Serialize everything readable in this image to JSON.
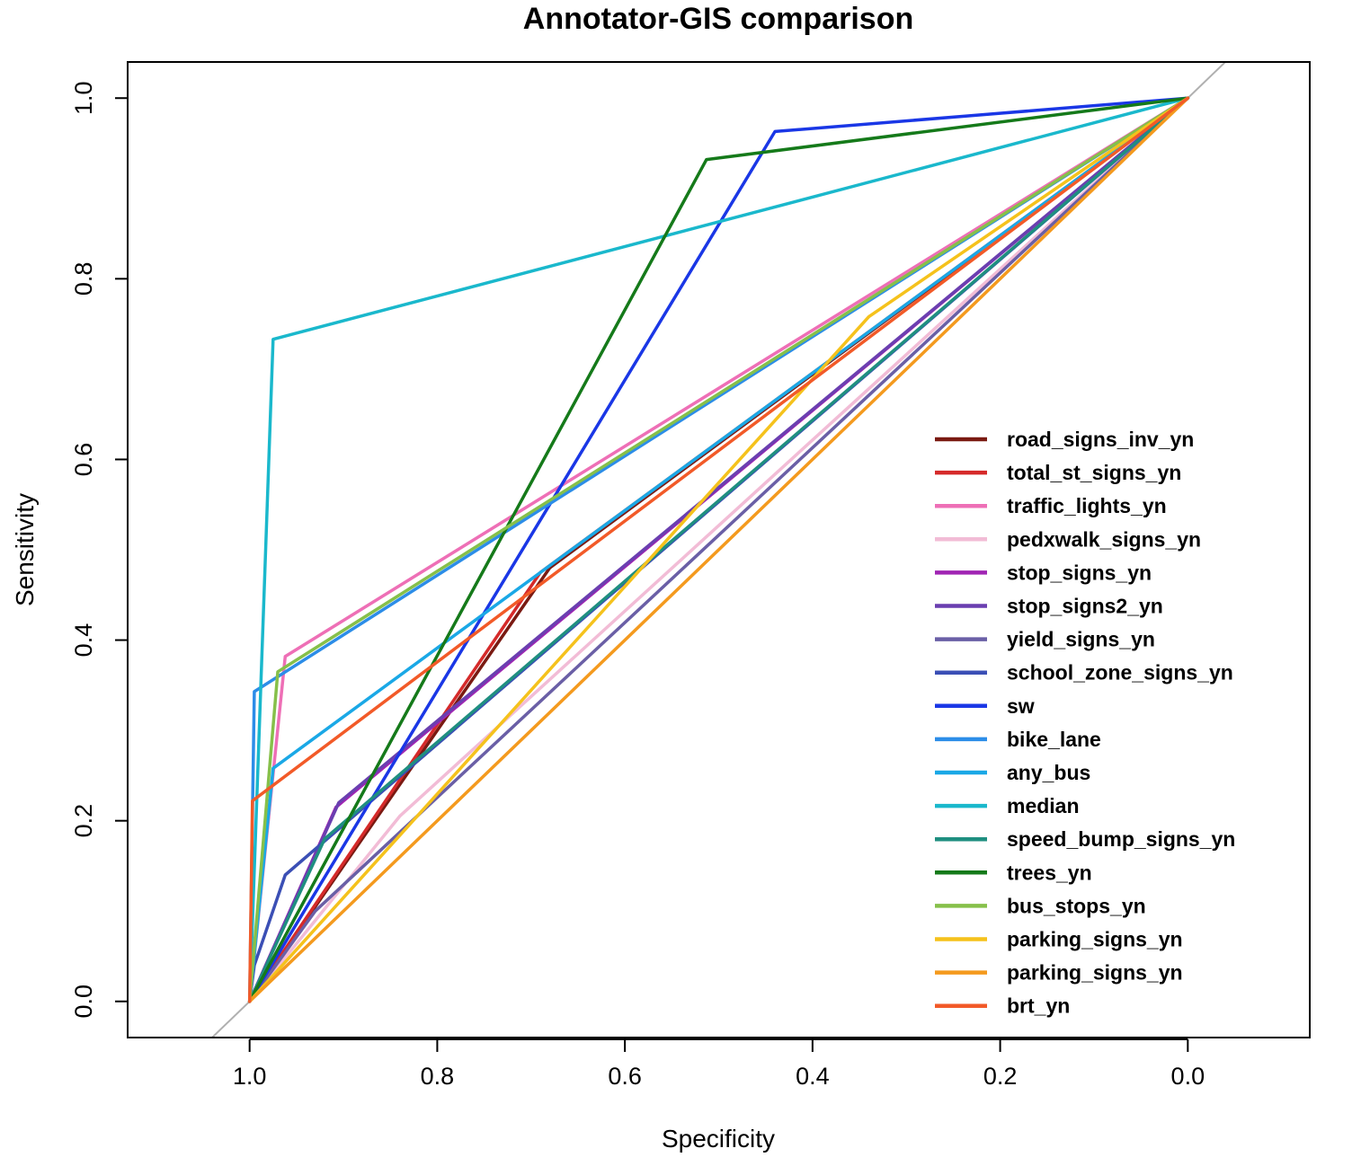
{
  "chart_data": {
    "type": "line",
    "title": "Annotator-GIS comparison",
    "xlabel": "Specificity",
    "ylabel": "Sensitivity",
    "x_reversed": true,
    "xlim": [
      1.13,
      -0.13
    ],
    "ylim": [
      -0.04,
      1.04
    ],
    "xticks": [
      "1.0",
      "0.8",
      "0.6",
      "0.4",
      "0.2",
      "0.0"
    ],
    "yticks": [
      "0.0",
      "0.2",
      "0.4",
      "0.6",
      "0.8",
      "1.0"
    ],
    "grid": false,
    "legend_position": "bottom-right",
    "reference_line": {
      "color": "#b0b0b0",
      "points": [
        [
          1.13,
          -0.13
        ],
        [
          -0.13,
          1.13
        ]
      ]
    },
    "series": [
      {
        "name": "road_signs_inv_yn",
        "color": "#7a1a12",
        "points": [
          [
            1.0,
            0.0
          ],
          [
            0.68,
            0.48
          ],
          [
            0.0,
            1.0
          ]
        ]
      },
      {
        "name": "total_st_signs_yn",
        "color": "#d52a2a",
        "points": [
          [
            1.0,
            0.0
          ],
          [
            0.69,
            0.475
          ],
          [
            0.0,
            1.0
          ]
        ]
      },
      {
        "name": "traffic_lights_yn",
        "color": "#ee6fb6",
        "points": [
          [
            1.0,
            0.0
          ],
          [
            0.962,
            0.382
          ],
          [
            0.0,
            1.0
          ]
        ]
      },
      {
        "name": "pedxwalk_signs_yn",
        "color": "#f2bcd6",
        "points": [
          [
            1.0,
            0.0
          ],
          [
            0.84,
            0.205
          ],
          [
            0.0,
            1.0
          ]
        ]
      },
      {
        "name": "stop_signs_yn",
        "color": "#a025b3",
        "points": [
          [
            1.0,
            0.0
          ],
          [
            0.908,
            0.215
          ],
          [
            0.0,
            1.0
          ]
        ]
      },
      {
        "name": "stop_signs2_yn",
        "color": "#6a3fb0",
        "points": [
          [
            1.0,
            0.0
          ],
          [
            0.905,
            0.22
          ],
          [
            0.0,
            1.0
          ]
        ]
      },
      {
        "name": "yield_signs_yn",
        "color": "#6a5fa6",
        "points": [
          [
            1.0,
            0.0
          ],
          [
            0.93,
            0.1
          ],
          [
            0.0,
            1.0
          ]
        ]
      },
      {
        "name": "school_zone_signs_yn",
        "color": "#3b4fb5",
        "points": [
          [
            1.0,
            0.0
          ],
          [
            0.995,
            0.04
          ],
          [
            0.962,
            0.14
          ],
          [
            0.0,
            1.0
          ]
        ]
      },
      {
        "name": "sw",
        "color": "#1a37e6",
        "points": [
          [
            1.0,
            0.0
          ],
          [
            0.44,
            0.963
          ],
          [
            0.0,
            1.0
          ]
        ]
      },
      {
        "name": "bike_lane",
        "color": "#2c8de8",
        "points": [
          [
            1.0,
            0.0
          ],
          [
            0.995,
            0.343
          ],
          [
            0.0,
            1.0
          ]
        ]
      },
      {
        "name": "any_bus",
        "color": "#1aa8e6",
        "points": [
          [
            1.0,
            0.0
          ],
          [
            0.975,
            0.258
          ],
          [
            0.0,
            1.0
          ]
        ]
      },
      {
        "name": "median",
        "color": "#1ab8cc",
        "points": [
          [
            1.0,
            0.0
          ],
          [
            0.975,
            0.733
          ],
          [
            0.0,
            1.0
          ]
        ]
      },
      {
        "name": "speed_bump_signs_yn",
        "color": "#1f8f80",
        "points": [
          [
            1.0,
            0.0
          ],
          [
            0.92,
            0.18
          ],
          [
            0.0,
            1.0
          ]
        ]
      },
      {
        "name": "trees_yn",
        "color": "#157a1a",
        "points": [
          [
            1.0,
            0.0
          ],
          [
            0.513,
            0.932
          ],
          [
            0.0,
            1.0
          ]
        ]
      },
      {
        "name": "bus_stops_yn",
        "color": "#86c04a",
        "points": [
          [
            1.0,
            0.0
          ],
          [
            0.97,
            0.365
          ],
          [
            0.0,
            1.0
          ]
        ]
      },
      {
        "name": "parking_signs_yn",
        "color": "#f5c21c",
        "points": [
          [
            1.0,
            0.0
          ],
          [
            0.34,
            0.758
          ],
          [
            0.0,
            1.0
          ]
        ]
      },
      {
        "name": "parking_signs_yn",
        "color": "#f49a1e",
        "points": [
          [
            1.0,
            0.0
          ],
          [
            0.0,
            1.0
          ]
        ]
      },
      {
        "name": "brt_yn",
        "color": "#f25a28",
        "points": [
          [
            1.0,
            0.0
          ],
          [
            0.997,
            0.222
          ],
          [
            0.0,
            1.0
          ]
        ]
      }
    ]
  }
}
